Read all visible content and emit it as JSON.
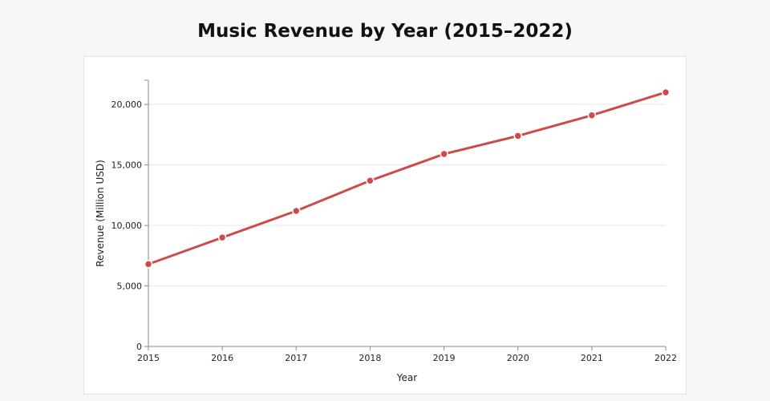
{
  "chart_data": {
    "type": "line",
    "title": "Music Revenue by Year (2015–2022)",
    "xlabel": "Year",
    "ylabel": "Revenue (Million USD)",
    "x": [
      "2015",
      "2016",
      "2017",
      "2018",
      "2019",
      "2020",
      "2021",
      "2022"
    ],
    "series": [
      {
        "values": [
          6800,
          9000,
          11200,
          13700,
          15900,
          17400,
          19100,
          21000
        ]
      }
    ],
    "ylim": [
      0,
      22000
    ],
    "yticks": [
      0,
      5000,
      10000,
      15000,
      20000
    ],
    "ytick_labels": [
      "0",
      "5,000",
      "10,000",
      "15,000",
      "20,000"
    ],
    "grid": "horizontal",
    "colors": {
      "line": "#cc4b4b",
      "marker_stroke": "#ffffff",
      "grid": "#e6e6e6",
      "axis": "#888888",
      "background": "#f7f7f7",
      "panel": "#ffffff"
    }
  }
}
